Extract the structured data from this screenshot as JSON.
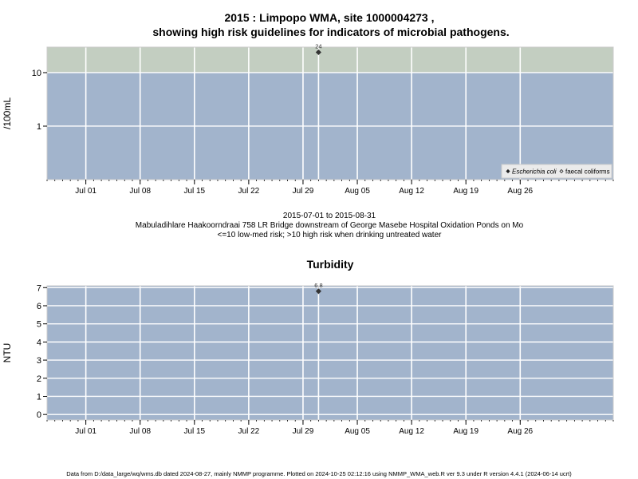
{
  "chart_data": [
    {
      "type": "scatter",
      "title_line1": "2015 : Limpopo WMA, site 1000004273 ,",
      "title_line2": "showing high risk guidelines for indicators of microbial pathogens.",
      "ylabel": "/100mL",
      "y_scale": "log",
      "ylim": [
        0.1,
        30
      ],
      "xlim": [
        "2015-06-26",
        "2015-09-07"
      ],
      "y_ticks": [
        {
          "value": 1,
          "label": "1"
        },
        {
          "value": 10,
          "label": "10"
        }
      ],
      "x_ticks": [
        {
          "date": "2015-07-01",
          "label": "Jul 01"
        },
        {
          "date": "2015-07-08",
          "label": "Jul 08"
        },
        {
          "date": "2015-07-15",
          "label": "Jul 15"
        },
        {
          "date": "2015-07-22",
          "label": "Jul 22"
        },
        {
          "date": "2015-07-29",
          "label": "Jul 29"
        },
        {
          "date": "2015-08-05",
          "label": "Aug 05"
        },
        {
          "date": "2015-08-12",
          "label": "Aug 12"
        },
        {
          "date": "2015-08-19",
          "label": "Aug 19"
        },
        {
          "date": "2015-08-26",
          "label": "Aug 26"
        }
      ],
      "bands": [
        {
          "from": 0.1,
          "to": 10,
          "color": "#a2b4cc"
        },
        {
          "from": 10,
          "to": 30,
          "color": "#c3cec1"
        }
      ],
      "series": [
        {
          "name": "Escherichia coli",
          "marker": "diamond-filled",
          "points": [
            {
              "x": "2015-07-31",
              "y": 24,
              "label": "24"
            }
          ]
        },
        {
          "name": "faecal coliforms",
          "marker": "diamond-open",
          "points": []
        }
      ],
      "legend_position": "bottom-right",
      "grid": true,
      "subtitle_lines": [
        "2015-07-01 to 2015-08-31",
        "Mabuladihlare Haakoorndraai 758 LR Bridge downstream of George Masebe Hospital Oxidation Ponds on Mo",
        "<=10 low-med risk; >10 high risk when drinking untreated water"
      ]
    },
    {
      "type": "scatter",
      "title": "Turbidity",
      "ylabel": "NTU",
      "y_scale": "linear",
      "ylim": [
        -0.3,
        7.1
      ],
      "xlim": [
        "2015-06-26",
        "2015-09-07"
      ],
      "y_ticks": [
        {
          "value": 0,
          "label": "0"
        },
        {
          "value": 1,
          "label": "1"
        },
        {
          "value": 2,
          "label": "2"
        },
        {
          "value": 3,
          "label": "3"
        },
        {
          "value": 4,
          "label": "4"
        },
        {
          "value": 5,
          "label": "5"
        },
        {
          "value": 6,
          "label": "6"
        },
        {
          "value": 7,
          "label": "7"
        }
      ],
      "x_ticks": [
        {
          "date": "2015-07-01",
          "label": "Jul 01"
        },
        {
          "date": "2015-07-08",
          "label": "Jul 08"
        },
        {
          "date": "2015-07-15",
          "label": "Jul 15"
        },
        {
          "date": "2015-07-22",
          "label": "Jul 22"
        },
        {
          "date": "2015-07-29",
          "label": "Jul 29"
        },
        {
          "date": "2015-08-05",
          "label": "Aug 05"
        },
        {
          "date": "2015-08-12",
          "label": "Aug 12"
        },
        {
          "date": "2015-08-19",
          "label": "Aug 19"
        },
        {
          "date": "2015-08-26",
          "label": "Aug 26"
        }
      ],
      "bands": [
        {
          "from": -0.3,
          "to": 7.1,
          "color": "#a2b4cc"
        }
      ],
      "series": [
        {
          "name": "Turbidity",
          "marker": "diamond-filled",
          "points": [
            {
              "x": "2015-07-31",
              "y": 6.8,
              "label": "6.8"
            }
          ]
        }
      ],
      "grid": true
    }
  ],
  "footer": "Data from D:/data_large/wq/wms.db dated 2024-08-27, mainly NMMP programme. Plotted on 2024-10-25 02:12:16 using NMMP_WMA_web.R ver 9.3 under R version 4.4.1 (2024-06-14 ucrt)"
}
